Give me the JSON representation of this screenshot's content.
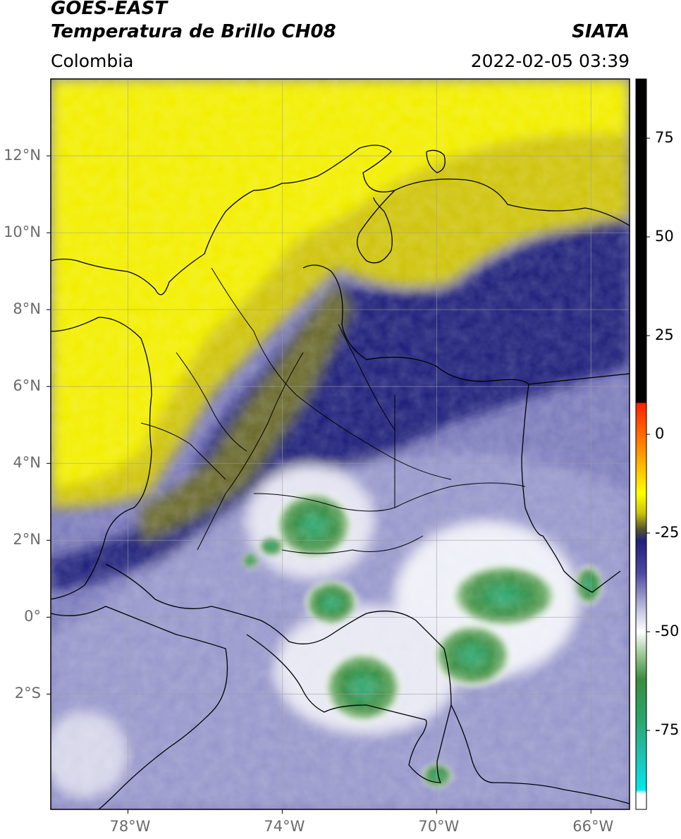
{
  "header": {
    "satellite": "GOES-EAST",
    "product": "Temperatura de Brillo CH08",
    "region": "Colombia",
    "org": "SIATA",
    "datetime": "2022-02-05 03:39"
  },
  "map": {
    "lon_range": [
      -80.0,
      -65.0
    ],
    "lat_range": [
      -5.0,
      14.0
    ],
    "lon_ticks": [
      {
        "value": -78,
        "label": "78°W"
      },
      {
        "value": -74,
        "label": "74°W"
      },
      {
        "value": -70,
        "label": "70°W"
      },
      {
        "value": -66,
        "label": "66°W"
      }
    ],
    "lat_ticks": [
      {
        "value": 12,
        "label": "12°N"
      },
      {
        "value": 10,
        "label": "10°N"
      },
      {
        "value": 8,
        "label": "8°N"
      },
      {
        "value": 6,
        "label": "6°N"
      },
      {
        "value": 4,
        "label": "4°N"
      },
      {
        "value": 2,
        "label": "2°N"
      },
      {
        "value": 0,
        "label": "0°"
      },
      {
        "value": -2,
        "label": "2°S"
      }
    ],
    "grid": true,
    "colors": {
      "warm_yellow": "#f5f000",
      "olive": "#8a8a2a",
      "navy": "#23237f",
      "lavender": "#b8b8dc",
      "white": "#ffffff",
      "green": "#3f9a4f",
      "teal": "#38b08a",
      "boundary": "#000000"
    }
  },
  "colorbar": {
    "range": [
      -95,
      90
    ],
    "ticks": [
      {
        "value": 75,
        "label": "75"
      },
      {
        "value": 50,
        "label": "50"
      },
      {
        "value": 25,
        "label": "25"
      },
      {
        "value": 0,
        "label": "0"
      },
      {
        "value": -25,
        "label": "-25"
      },
      {
        "value": -50,
        "label": "-50"
      },
      {
        "value": -75,
        "label": "-75"
      }
    ],
    "stops": [
      {
        "value": 90,
        "color": "#000000"
      },
      {
        "value": 8,
        "color": "#000000"
      },
      {
        "value": 7.9,
        "color": "#ff2000"
      },
      {
        "value": -5,
        "color": "#ff9a00"
      },
      {
        "value": -15,
        "color": "#ffff00"
      },
      {
        "value": -20,
        "color": "#c9c20a"
      },
      {
        "value": -24,
        "color": "#55552e"
      },
      {
        "value": -27,
        "color": "#20207f"
      },
      {
        "value": -35,
        "color": "#4a4a9e"
      },
      {
        "value": -45,
        "color": "#c9c9e4"
      },
      {
        "value": -50,
        "color": "#ffffff"
      },
      {
        "value": -55,
        "color": "#a8cfa0"
      },
      {
        "value": -62,
        "color": "#3b8c3f"
      },
      {
        "value": -72,
        "color": "#2aa56a"
      },
      {
        "value": -82,
        "color": "#1fc4b7"
      },
      {
        "value": -90,
        "color": "#00e8e8"
      },
      {
        "value": -91,
        "color": "#ffffff"
      },
      {
        "value": -95,
        "color": "#ffffff"
      }
    ]
  }
}
